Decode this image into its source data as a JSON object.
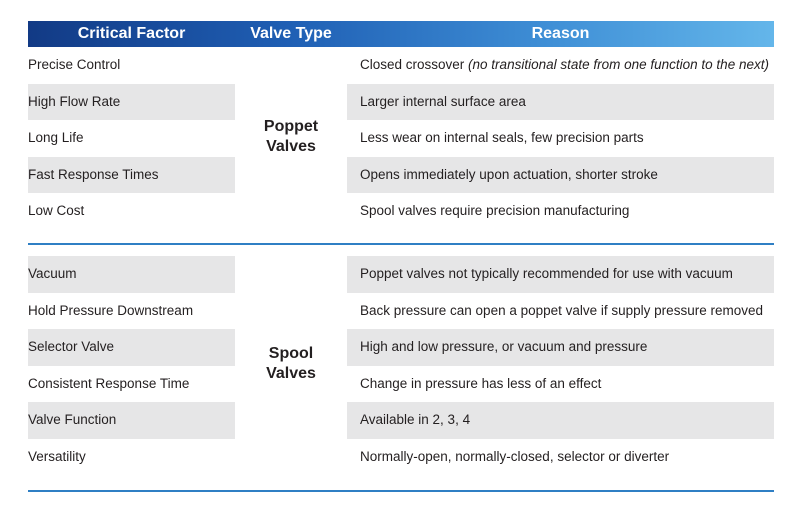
{
  "header": {
    "critical_factor": "Critical Factor",
    "valve_type": "Valve Type",
    "reason": "Reason"
  },
  "poppet": {
    "type_line1": "Poppet",
    "type_line2": "Valves",
    "rows": [
      {
        "factor": "Precise Control",
        "reason": "Closed crossover ",
        "note": "(no transitional state from one function to the next)"
      },
      {
        "factor": "High Flow Rate",
        "reason": "Larger internal surface area"
      },
      {
        "factor": "Long Life",
        "reason": "Less wear on internal seals, few precision parts"
      },
      {
        "factor": "Fast Response Times",
        "reason": "Opens immediately upon actuation, shorter stroke"
      },
      {
        "factor": "Low Cost",
        "reason": "Spool valves require precision manufacturing"
      }
    ]
  },
  "spool": {
    "type_line1": "Spool",
    "type_line2": "Valves",
    "rows": [
      {
        "factor": "Vacuum",
        "reason": "Poppet valves not typically recommended for use with vacuum"
      },
      {
        "factor": "Hold Pressure Downstream",
        "reason": "Back pressure can open a poppet valve if supply pressure removed"
      },
      {
        "factor": "Selector Valve",
        "reason": "High and low pressure, or vacuum and pressure"
      },
      {
        "factor": "Consistent Response Time",
        "reason": "Change in pressure has less of an effect"
      },
      {
        "factor": "Valve Function",
        "reason": "Available in 2, 3, 4"
      },
      {
        "factor": "Versatility",
        "reason": "Normally-open, normally-closed, selector or diverter"
      }
    ]
  },
  "colors": {
    "header_start": "#123a85",
    "header_end": "#64b6ea",
    "row_shade": "#e6e6e7",
    "divider": "#2f7fc4"
  }
}
